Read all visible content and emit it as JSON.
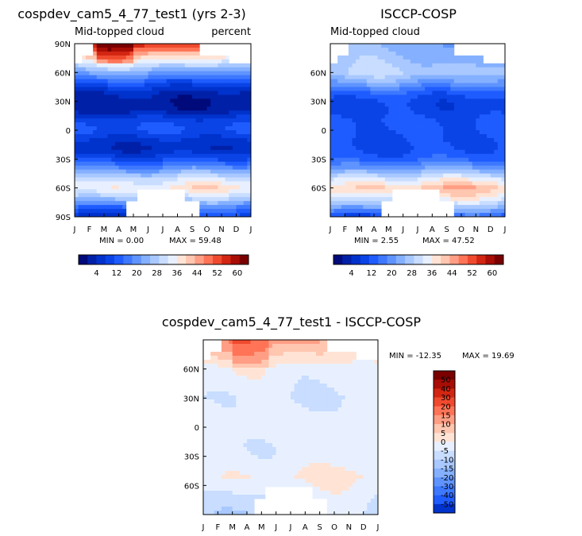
{
  "chart_data": [
    {
      "type": "heatmap",
      "title": "cospdev_cam5_4_77_test1 (yrs 2-3)",
      "left_label": "Mid-topped cloud",
      "right_label": "percent",
      "x_ticks": [
        "J",
        "F",
        "M",
        "A",
        "M",
        "J",
        "J",
        "A",
        "S",
        "O",
        "N",
        "D",
        "J"
      ],
      "y_ticks": [
        "90N",
        "60N",
        "30N",
        "0",
        "30S",
        "60S",
        "90S"
      ],
      "ylim": [
        -90,
        90
      ],
      "min_label": "MIN =    0.00",
      "max_label": "MAX =  59.48",
      "min": 0.0,
      "max": 59.48,
      "colorbar_labels": [
        "4",
        "12",
        "20",
        "28",
        "36",
        "44",
        "52",
        "60"
      ],
      "profile_lat": [
        -90,
        -80,
        -70,
        -60,
        -50,
        -40,
        -30,
        -20,
        -10,
        0,
        10,
        20,
        30,
        40,
        50,
        60,
        70,
        80,
        90
      ],
      "profile_val": [
        10,
        18,
        30,
        38,
        32,
        22,
        13,
        7,
        9,
        14,
        12,
        5,
        4,
        7,
        14,
        24,
        34,
        44,
        56
      ]
    },
    {
      "type": "heatmap",
      "title": "ISCCP-COSP",
      "left_label": "Mid-topped cloud",
      "right_label": "",
      "x_ticks": [
        "J",
        "F",
        "M",
        "A",
        "M",
        "J",
        "J",
        "A",
        "S",
        "O",
        "N",
        "D",
        "J"
      ],
      "y_ticks": [
        "60N",
        "30N",
        "0",
        "30S",
        "60S"
      ],
      "ylim": [
        -90,
        90
      ],
      "min_label": "MIN =    2.55",
      "max_label": "MAX =  47.52",
      "min": 2.55,
      "max": 47.52,
      "colorbar_labels": [
        "4",
        "12",
        "20",
        "28",
        "36",
        "44",
        "52",
        "60"
      ],
      "profile_lat": [
        -90,
        -80,
        -70,
        -60,
        -50,
        -40,
        -30,
        -20,
        -10,
        0,
        10,
        20,
        30,
        40,
        50,
        60,
        70,
        80,
        90
      ],
      "profile_val": [
        14,
        26,
        36,
        42,
        34,
        24,
        16,
        13,
        13,
        14,
        14,
        12,
        12,
        16,
        24,
        30,
        28,
        26,
        24
      ]
    },
    {
      "type": "heatmap",
      "title": "cospdev_cam5_4_77_test1 - ISCCP-COSP",
      "x_ticks": [
        "J",
        "F",
        "M",
        "A",
        "M",
        "J",
        "J",
        "A",
        "S",
        "O",
        "N",
        "D",
        "J"
      ],
      "y_ticks": [
        "60N",
        "30N",
        "0",
        "30S",
        "60S"
      ],
      "ylim": [
        -90,
        90
      ],
      "min_label": "MIN = -12.35",
      "max_label": "MAX =  19.69",
      "min": -12.35,
      "max": 19.69,
      "colorbar_labels": [
        "50",
        "40",
        "30",
        "20",
        "15",
        "10",
        "5",
        "0",
        "-5",
        "-10",
        "-15",
        "-20",
        "-30",
        "-40",
        "-50"
      ],
      "profile_lat": [
        -90,
        -80,
        -70,
        -60,
        -50,
        -40,
        -30,
        -20,
        -10,
        0,
        10,
        20,
        30,
        40,
        50,
        60,
        70,
        80,
        90
      ],
      "profile_val": [
        -8,
        -6,
        -4,
        -2,
        1,
        -2,
        -3,
        -4,
        -3,
        -2,
        -2,
        -4,
        -5,
        -4,
        -3,
        -2,
        3,
        8,
        12
      ]
    }
  ],
  "colors": {
    "seq": [
      "#000a7a",
      "#0020a8",
      "#0032cc",
      "#0a44e6",
      "#1f5cff",
      "#3d78ff",
      "#5f94ff",
      "#84b0ff",
      "#a8c8ff",
      "#c8ddff",
      "#e8f0ff",
      "#ffe4d6",
      "#ffc6b0",
      "#ff9e84",
      "#ff7456",
      "#f04a2e",
      "#d22612",
      "#a80e05",
      "#7a0000"
    ],
    "diff": [
      "#7a0000",
      "#a80e05",
      "#d22612",
      "#f04a2e",
      "#ff7456",
      "#ff9e84",
      "#ffc6b0",
      "#ffe4d6",
      "#e8f0ff",
      "#c8ddff",
      "#a8c8ff",
      "#84b0ff",
      "#5f94ff",
      "#3d78ff",
      "#1f5cff",
      "#0032cc"
    ]
  }
}
